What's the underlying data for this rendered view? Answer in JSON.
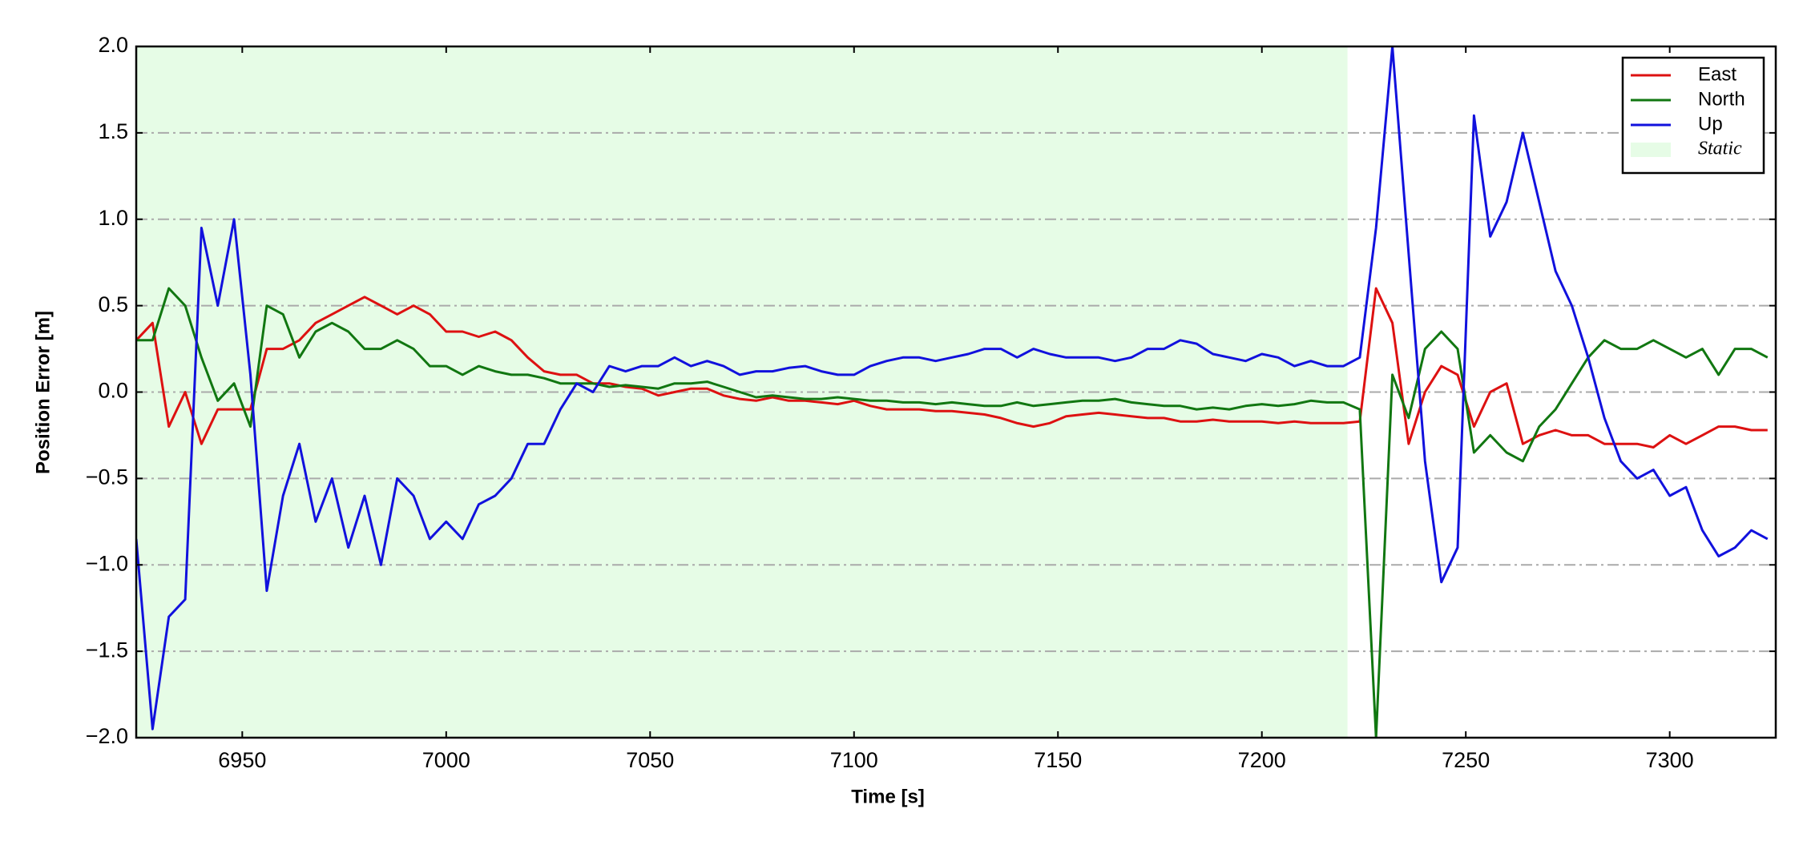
{
  "chart_data": {
    "type": "line",
    "xlabel": "Time [s]",
    "ylabel": "Position Error [m]",
    "xlim": [
      6924,
      7326
    ],
    "ylim": [
      -2.0,
      2.0
    ],
    "xticks": [
      6950,
      7000,
      7050,
      7100,
      7150,
      7200,
      7250,
      7300
    ],
    "yticks": [
      {
        "value": -2.0,
        "label": "−2.0"
      },
      {
        "value": -1.5,
        "label": "−1.5"
      },
      {
        "value": -1.0,
        "label": "−1.0"
      },
      {
        "value": -0.5,
        "label": "−0.5"
      },
      {
        "value": 0.0,
        "label": "0.0"
      },
      {
        "value": 0.5,
        "label": "0.5"
      },
      {
        "value": 1.0,
        "label": "1.0"
      },
      {
        "value": 1.5,
        "label": "1.5"
      },
      {
        "value": 2.0,
        "label": "2.0"
      }
    ],
    "grid": true,
    "legend": "upper right",
    "span": {
      "name": "Static",
      "color": "#e6fce6",
      "x": [
        6924,
        7221
      ]
    },
    "x": [
      6924,
      6928,
      6932,
      6936,
      6940,
      6944,
      6948,
      6952,
      6956,
      6960,
      6964,
      6968,
      6972,
      6976,
      6980,
      6984,
      6988,
      6992,
      6996,
      7000,
      7004,
      7008,
      7012,
      7016,
      7020,
      7024,
      7028,
      7032,
      7036,
      7040,
      7044,
      7048,
      7052,
      7056,
      7060,
      7064,
      7068,
      7072,
      7076,
      7080,
      7084,
      7088,
      7092,
      7096,
      7100,
      7104,
      7108,
      7112,
      7116,
      7120,
      7124,
      7128,
      7132,
      7136,
      7140,
      7144,
      7148,
      7152,
      7156,
      7160,
      7164,
      7168,
      7172,
      7176,
      7180,
      7184,
      7188,
      7192,
      7196,
      7200,
      7204,
      7208,
      7212,
      7216,
      7220,
      7224,
      7228,
      7232,
      7236,
      7240,
      7244,
      7248,
      7252,
      7256,
      7260,
      7264,
      7268,
      7272,
      7276,
      7280,
      7284,
      7288,
      7292,
      7296,
      7300,
      7304,
      7308,
      7312,
      7316,
      7320,
      7324
    ],
    "series": [
      {
        "name": "East",
        "color": "#dd1111",
        "values": [
          0.3,
          0.4,
          -0.2,
          0.0,
          -0.3,
          -0.1,
          -0.1,
          -0.1,
          0.25,
          0.25,
          0.3,
          0.4,
          0.45,
          0.5,
          0.55,
          0.5,
          0.45,
          0.5,
          0.45,
          0.35,
          0.35,
          0.32,
          0.35,
          0.3,
          0.2,
          0.12,
          0.1,
          0.1,
          0.05,
          0.05,
          0.03,
          0.02,
          -0.02,
          0.0,
          0.02,
          0.02,
          -0.02,
          -0.04,
          -0.05,
          -0.03,
          -0.05,
          -0.05,
          -0.06,
          -0.07,
          -0.05,
          -0.08,
          -0.1,
          -0.1,
          -0.1,
          -0.11,
          -0.11,
          -0.12,
          -0.13,
          -0.15,
          -0.18,
          -0.2,
          -0.18,
          -0.14,
          -0.13,
          -0.12,
          -0.13,
          -0.14,
          -0.15,
          -0.15,
          -0.17,
          -0.17,
          -0.16,
          -0.17,
          -0.17,
          -0.17,
          -0.18,
          -0.17,
          -0.18,
          -0.18,
          -0.18,
          -0.17,
          0.6,
          0.4,
          -0.3,
          0.0,
          0.15,
          0.1,
          -0.2,
          0.0,
          0.05,
          -0.3,
          -0.25,
          -0.22,
          -0.25,
          -0.25,
          -0.3,
          -0.3,
          -0.3,
          -0.32,
          -0.25,
          -0.3,
          -0.25,
          -0.2,
          -0.2,
          -0.22,
          -0.22
        ]
      },
      {
        "name": "North",
        "color": "#117711",
        "values": [
          0.3,
          0.3,
          0.6,
          0.5,
          0.2,
          -0.05,
          0.05,
          -0.2,
          0.5,
          0.45,
          0.2,
          0.35,
          0.4,
          0.35,
          0.25,
          0.25,
          0.3,
          0.25,
          0.15,
          0.15,
          0.1,
          0.15,
          0.12,
          0.1,
          0.1,
          0.08,
          0.05,
          0.05,
          0.05,
          0.03,
          0.04,
          0.03,
          0.02,
          0.05,
          0.05,
          0.06,
          0.03,
          0.0,
          -0.03,
          -0.02,
          -0.03,
          -0.04,
          -0.04,
          -0.03,
          -0.04,
          -0.05,
          -0.05,
          -0.06,
          -0.06,
          -0.07,
          -0.06,
          -0.07,
          -0.08,
          -0.08,
          -0.06,
          -0.08,
          -0.07,
          -0.06,
          -0.05,
          -0.05,
          -0.04,
          -0.06,
          -0.07,
          -0.08,
          -0.08,
          -0.1,
          -0.09,
          -0.1,
          -0.08,
          -0.07,
          -0.08,
          -0.07,
          -0.05,
          -0.06,
          -0.06,
          -0.1,
          -2.0,
          0.1,
          -0.15,
          0.25,
          0.35,
          0.25,
          -0.35,
          -0.25,
          -0.35,
          -0.4,
          -0.2,
          -0.1,
          0.05,
          0.2,
          0.3,
          0.25,
          0.25,
          0.3,
          0.25,
          0.2,
          0.25,
          0.1,
          0.25,
          0.25,
          0.2
        ]
      },
      {
        "name": "Up",
        "color": "#1111dd",
        "values": [
          -0.85,
          -1.95,
          -1.3,
          -1.2,
          0.95,
          0.5,
          1.0,
          0.1,
          -1.15,
          -0.6,
          -0.3,
          -0.75,
          -0.5,
          -0.9,
          -0.6,
          -1.0,
          -0.5,
          -0.6,
          -0.85,
          -0.75,
          -0.85,
          -0.65,
          -0.6,
          -0.5,
          -0.3,
          -0.3,
          -0.1,
          0.05,
          0.0,
          0.15,
          0.12,
          0.15,
          0.15,
          0.2,
          0.15,
          0.18,
          0.15,
          0.1,
          0.12,
          0.12,
          0.14,
          0.15,
          0.12,
          0.1,
          0.1,
          0.15,
          0.18,
          0.2,
          0.2,
          0.18,
          0.2,
          0.22,
          0.25,
          0.25,
          0.2,
          0.25,
          0.22,
          0.2,
          0.2,
          0.2,
          0.18,
          0.2,
          0.25,
          0.25,
          0.3,
          0.28,
          0.22,
          0.2,
          0.18,
          0.22,
          0.2,
          0.15,
          0.18,
          0.15,
          0.15,
          0.2,
          0.95,
          2.0,
          0.8,
          -0.4,
          -1.1,
          -0.9,
          1.6,
          0.9,
          1.1,
          1.5,
          1.1,
          0.7,
          0.5,
          0.2,
          -0.15,
          -0.4,
          -0.5,
          -0.45,
          -0.6,
          -0.55,
          -0.8,
          -0.95,
          -0.9,
          -0.8,
          -0.85
        ]
      }
    ]
  }
}
